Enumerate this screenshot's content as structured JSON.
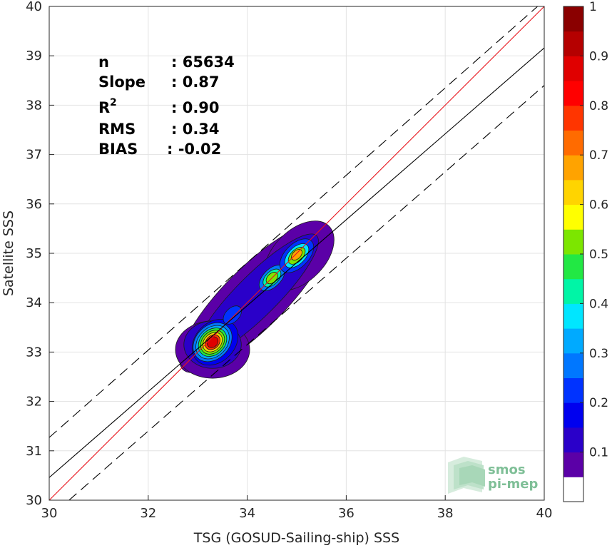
{
  "chart_data": {
    "type": "scatter",
    "subtype": "density-contour",
    "xlabel": "TSG (GOSUD-Sailing-ship) SSS",
    "ylabel": "Satellite SSS",
    "xlim": [
      30,
      40
    ],
    "ylim": [
      30,
      40
    ],
    "xticks": [
      "30",
      "32",
      "34",
      "36",
      "38",
      "40"
    ],
    "yticks": [
      "30",
      "31",
      "32",
      "33",
      "34",
      "35",
      "36",
      "37",
      "38",
      "39",
      "40"
    ],
    "grid": true,
    "lines": [
      {
        "name": "identity",
        "color": "#e8141c",
        "style": "solid",
        "x": [
          30,
          40
        ],
        "y": [
          30,
          40
        ]
      },
      {
        "name": "regression",
        "color": "#000000",
        "style": "solid",
        "x": [
          30,
          40
        ],
        "y": [
          30.46,
          39.16
        ]
      },
      {
        "name": "upper-bound",
        "color": "#000000",
        "style": "dashed",
        "x": [
          30,
          40
        ],
        "y": [
          31.27,
          40.12
        ]
      },
      {
        "name": "lower-bound",
        "color": "#000000",
        "style": "dashed",
        "x": [
          30.4,
          40
        ],
        "y": [
          30,
          38.4
        ]
      }
    ],
    "stats": [
      {
        "key": "n",
        "sup": "",
        "value": ": 65634"
      },
      {
        "key": "Slope",
        "sup": "",
        "value": ": 0.87"
      },
      {
        "key": "R",
        "sup": "2",
        "value": ": 0.90"
      },
      {
        "key": "RMS",
        "sup": "",
        "value": ": 0.34"
      },
      {
        "key": "BIAS",
        "sup": "",
        "value": ": -0.02"
      }
    ],
    "density_peaks": [
      {
        "x": 33.3,
        "y": 33.2,
        "density": 1.0
      },
      {
        "x": 34.5,
        "y": 34.5,
        "density": 0.6
      },
      {
        "x": 35.0,
        "y": 34.95,
        "density": 0.7
      },
      {
        "x": 33.7,
        "y": 33.75,
        "density": 0.3
      }
    ],
    "colorbar": {
      "ticks": [
        "0.1",
        "0.2",
        "0.3",
        "0.4",
        "0.5",
        "0.6",
        "0.7",
        "0.8",
        "0.9",
        "1"
      ],
      "tick_values": [
        0.1,
        0.2,
        0.3,
        0.4,
        0.5,
        0.6,
        0.7,
        0.8,
        0.9,
        1.0
      ],
      "range": [
        0,
        1
      ],
      "colors": [
        "#ffffff",
        "#5b00a7",
        "#2a00c9",
        "#0000ef",
        "#0033ff",
        "#0077ff",
        "#00aaff",
        "#00e6ff",
        "#00f5a6",
        "#22e844",
        "#7ce600",
        "#ffff00",
        "#ffd400",
        "#ffa300",
        "#ff6b00",
        "#ff3500",
        "#ff0000",
        "#e00000",
        "#b50000",
        "#8a0000"
      ]
    }
  },
  "logo": {
    "line1": "smos",
    "line2": "pi-mep"
  }
}
